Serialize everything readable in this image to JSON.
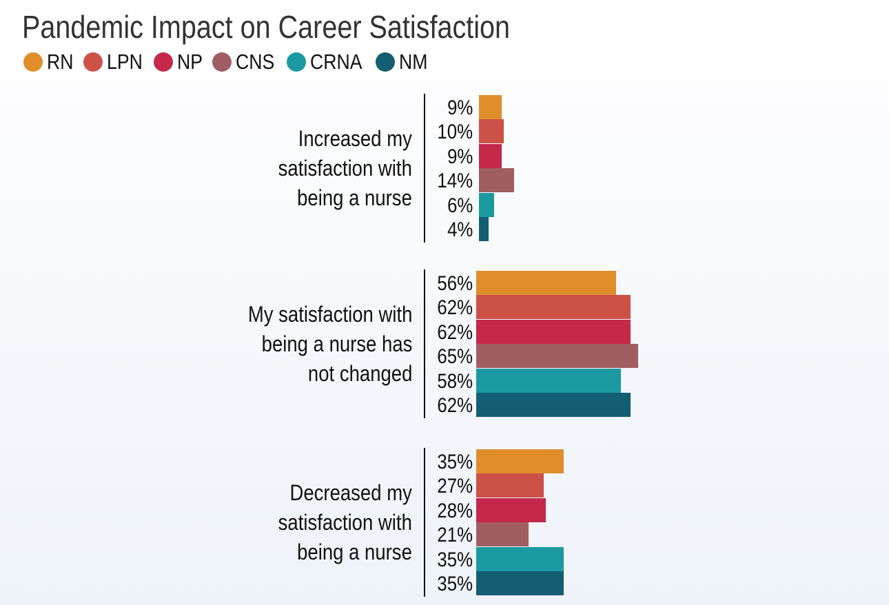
{
  "chart_data": {
    "type": "bar",
    "orientation": "horizontal",
    "title": "Pandemic Impact on Career Satisfaction",
    "categories": [
      "Increased my satisfaction with being a nurse",
      "My satisfaction with being a nurse has not changed",
      "Decreased my satisfaction with being a nurse"
    ],
    "category_lines": [
      [
        "Increased my",
        "satisfaction with",
        "being a nurse"
      ],
      [
        "My satisfaction with",
        "being a nurse has",
        "not changed"
      ],
      [
        "Decreased my",
        "satisfaction with",
        "being a nurse"
      ]
    ],
    "series": [
      {
        "name": "RN",
        "color": "#E08E2C",
        "values": [
          9,
          56,
          35
        ]
      },
      {
        "name": "LPN",
        "color": "#CC5248",
        "values": [
          10,
          62,
          27
        ]
      },
      {
        "name": "NP",
        "color": "#C4294A",
        "values": [
          9,
          62,
          28
        ]
      },
      {
        "name": "CNS",
        "color": "#A05E64",
        "values": [
          14,
          65,
          21
        ]
      },
      {
        "name": "CRNA",
        "color": "#1A9AA0",
        "values": [
          6,
          58,
          35
        ]
      },
      {
        "name": "NM",
        "color": "#135E73",
        "values": [
          4,
          62,
          35
        ]
      }
    ],
    "value_format": "%",
    "legend": "top-left",
    "grid": false
  }
}
